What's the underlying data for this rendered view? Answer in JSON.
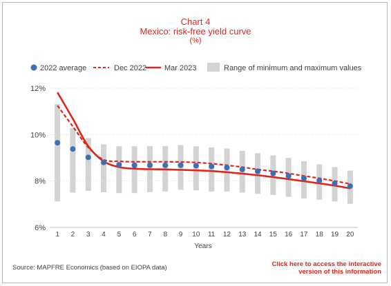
{
  "chart_data": {
    "type": "line",
    "title": "Chart 4",
    "subtitle": "Mexico: risk-free yield curve",
    "unit": "(%)",
    "xlabel": "Years",
    "ylabel": "",
    "x": [
      1,
      2,
      3,
      4,
      5,
      6,
      7,
      8,
      9,
      10,
      11,
      12,
      13,
      14,
      15,
      16,
      17,
      18,
      19,
      20
    ],
    "y_ticks": [
      "6%",
      "8%",
      "10%",
      "12%"
    ],
    "ylim": [
      6,
      12
    ],
    "grid": true,
    "legend_position": "top",
    "range": {
      "name": "Range of minimum and maximum values",
      "color": "#d3d3d3",
      "min": [
        7.12,
        7.5,
        7.58,
        7.52,
        7.48,
        7.48,
        7.52,
        7.55,
        7.62,
        7.6,
        7.55,
        7.55,
        7.5,
        7.45,
        7.4,
        7.32,
        7.25,
        7.2,
        7.12,
        7.02
      ],
      "max": [
        11.32,
        10.28,
        9.85,
        9.58,
        9.5,
        9.5,
        9.5,
        9.5,
        9.55,
        9.5,
        9.45,
        9.4,
        9.3,
        9.2,
        9.1,
        9.0,
        8.85,
        8.72,
        8.6,
        8.45
      ]
    },
    "series": [
      {
        "name": "2022 average",
        "style": "dots",
        "color": "#3b6fb6",
        "values": [
          9.65,
          9.38,
          9.02,
          8.8,
          8.7,
          8.68,
          8.68,
          8.68,
          8.68,
          8.66,
          8.63,
          8.58,
          8.5,
          8.42,
          8.33,
          8.22,
          8.12,
          8.02,
          7.9,
          7.78
        ]
      },
      {
        "name": "Dec 2022",
        "style": "dashed",
        "color": "#e3241b",
        "values": [
          11.25,
          10.35,
          9.45,
          8.92,
          8.85,
          8.83,
          8.83,
          8.83,
          8.82,
          8.8,
          8.75,
          8.68,
          8.6,
          8.5,
          8.42,
          8.33,
          8.22,
          8.12,
          8.0,
          7.88
        ]
      },
      {
        "name": "Mar 2023",
        "style": "solid",
        "color": "#e3241b",
        "values": [
          11.82,
          10.68,
          9.5,
          8.85,
          8.6,
          8.53,
          8.51,
          8.5,
          8.48,
          8.46,
          8.43,
          8.38,
          8.32,
          8.25,
          8.17,
          8.08,
          7.99,
          7.9,
          7.8,
          7.68
        ]
      }
    ]
  },
  "footer": {
    "source": "Source: MAPFRE Economics (based on EIOPA data)",
    "link_line1": "Click here to access the interactive",
    "link_line2": "version of this information"
  }
}
